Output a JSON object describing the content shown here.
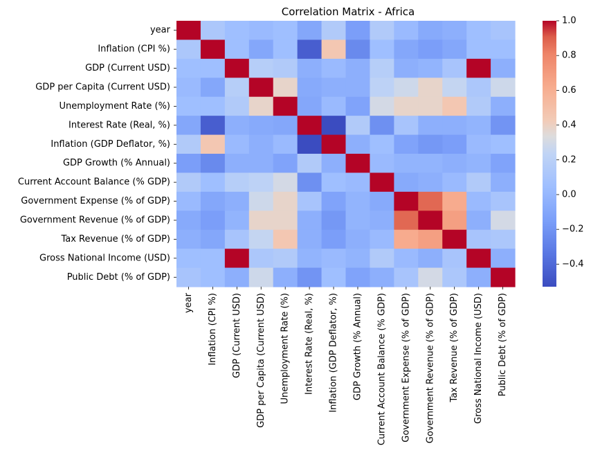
{
  "chart_data": {
    "type": "heatmap",
    "title": "Correlation Matrix - Africa",
    "xlabel": "",
    "ylabel": "",
    "colormap": "coolwarm",
    "vmin": -0.53,
    "vmax": 1.0,
    "colorbar_ticks": [
      1.0,
      0.8,
      0.6,
      0.4,
      0.2,
      0.0,
      -0.2,
      -0.4
    ],
    "colorbar_tick_labels": [
      "1.0",
      "0.8",
      "0.6",
      "0.4",
      "0.2",
      "0.0",
      "−0.2",
      "−0.4"
    ],
    "labels": [
      "year",
      "Inflation (CPI %)",
      "GDP (Current USD)",
      "GDP per Capita (Current USD)",
      "Unemployment Rate (%)",
      "Interest Rate (Real, %)",
      "Inflation (GDP Deflator, %)",
      "GDP Growth (% Annual)",
      "Current Account Balance (% GDP)",
      "Government Expense (% of GDP)",
      "Government Revenue (% of GDP)",
      "Tax Revenue (% of GDP)",
      "Gross National Income (USD)",
      "Public Debt (% of GDP)"
    ],
    "matrix": [
      [
        1.0,
        0.12,
        0.05,
        0.02,
        0.05,
        -0.1,
        0.15,
        -0.15,
        0.15,
        0.02,
        -0.08,
        -0.05,
        0.05,
        0.1
      ],
      [
        0.12,
        1.0,
        0.05,
        -0.1,
        0.05,
        -0.45,
        0.45,
        -0.25,
        0.05,
        -0.1,
        -0.15,
        -0.1,
        0.05,
        0.05
      ],
      [
        0.05,
        0.05,
        1.0,
        0.18,
        0.15,
        -0.05,
        0.02,
        -0.05,
        0.18,
        -0.05,
        -0.02,
        0.1,
        1.0,
        -0.05
      ],
      [
        0.02,
        -0.1,
        0.18,
        1.0,
        0.38,
        -0.08,
        -0.05,
        -0.05,
        0.22,
        0.28,
        0.38,
        0.25,
        0.12,
        0.28
      ],
      [
        0.05,
        0.05,
        0.15,
        0.38,
        1.0,
        -0.1,
        0.02,
        -0.12,
        0.3,
        0.38,
        0.38,
        0.45,
        0.15,
        -0.05
      ],
      [
        -0.1,
        -0.45,
        -0.05,
        -0.08,
        -0.1,
        1.0,
        -0.53,
        0.15,
        -0.22,
        0.1,
        -0.05,
        -0.05,
        -0.02,
        -0.2
      ],
      [
        0.15,
        0.45,
        0.02,
        -0.05,
        0.02,
        -0.53,
        1.0,
        -0.05,
        0.05,
        -0.12,
        -0.18,
        -0.15,
        0.02,
        0.05
      ],
      [
        -0.15,
        -0.25,
        -0.05,
        -0.05,
        -0.12,
        0.15,
        -0.05,
        1.0,
        0.02,
        -0.02,
        -0.02,
        -0.05,
        -0.02,
        -0.12
      ],
      [
        0.15,
        0.05,
        0.18,
        0.22,
        0.3,
        -0.22,
        0.05,
        0.02,
        1.0,
        -0.08,
        -0.05,
        0.02,
        0.15,
        -0.05
      ],
      [
        0.02,
        -0.1,
        -0.05,
        0.28,
        0.38,
        0.1,
        -0.12,
        -0.02,
        -0.08,
        1.0,
        0.88,
        0.62,
        0.02,
        0.1
      ],
      [
        -0.08,
        -0.15,
        -0.02,
        0.38,
        0.38,
        -0.05,
        -0.18,
        -0.02,
        -0.05,
        0.88,
        1.0,
        0.68,
        -0.05,
        0.3
      ],
      [
        -0.05,
        -0.1,
        0.1,
        0.25,
        0.45,
        -0.05,
        -0.15,
        -0.05,
        0.02,
        0.62,
        0.68,
        1.0,
        0.1,
        0.12
      ],
      [
        0.05,
        0.05,
        1.0,
        0.12,
        0.15,
        -0.02,
        0.02,
        -0.02,
        0.15,
        0.02,
        -0.05,
        0.1,
        1.0,
        -0.05
      ],
      [
        0.1,
        0.05,
        -0.05,
        0.28,
        -0.05,
        -0.2,
        0.05,
        -0.12,
        -0.05,
        0.1,
        0.3,
        0.12,
        -0.05,
        1.0
      ]
    ]
  }
}
